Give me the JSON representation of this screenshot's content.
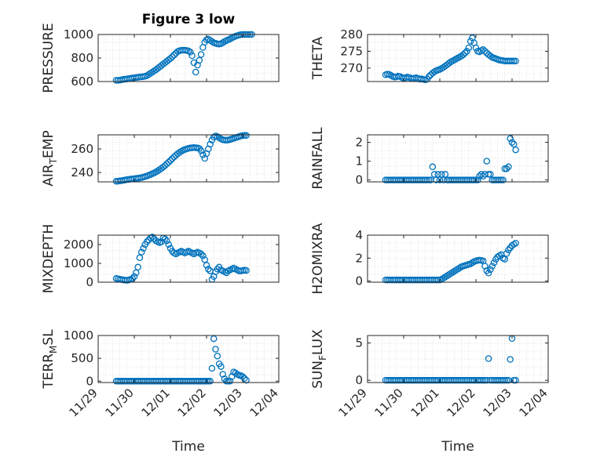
{
  "figure": {
    "title": "Figure 3 low",
    "xlabel": "Time",
    "marker_color": "#0072BD",
    "grid": "minor, dotted"
  },
  "chart_data": [
    {
      "type": "scatter",
      "ylabel": "PRESSURE",
      "ylim": [
        600,
        1000
      ],
      "yticks": [
        600,
        800,
        1000
      ],
      "xticks": [
        "11/29",
        "11/30",
        "12/01",
        "12/02",
        "12/03",
        "12/04"
      ],
      "x": [
        29.5,
        29.55,
        29.6,
        29.65,
        29.7,
        29.75,
        29.8,
        29.85,
        29.9,
        29.95,
        30.0,
        30.05,
        30.1,
        30.15,
        30.2,
        30.25,
        30.3,
        30.35,
        30.4,
        30.45,
        30.5,
        30.55,
        30.6,
        30.65,
        30.7,
        30.75,
        30.8,
        30.85,
        30.9,
        30.95,
        31.0,
        31.05,
        31.1,
        31.15,
        31.2,
        31.25,
        31.3,
        31.35,
        31.4,
        31.45,
        31.5,
        31.55,
        31.6,
        31.65,
        31.7,
        31.75,
        31.8,
        31.85,
        31.9,
        31.95,
        32.0,
        32.05,
        32.1,
        32.15,
        32.2,
        32.25,
        32.3,
        32.35,
        32.4,
        32.45,
        32.5,
        32.55,
        32.6,
        32.65,
        32.7,
        32.75,
        32.8,
        32.85,
        32.9,
        32.95,
        33.0,
        33.05,
        33.1,
        33.15,
        33.2,
        33.25
      ],
      "y": [
        610,
        610,
        612,
        615,
        618,
        620,
        622,
        625,
        627,
        630,
        632,
        634,
        636,
        638,
        640,
        642,
        645,
        650,
        660,
        670,
        680,
        690,
        700,
        712,
        724,
        736,
        748,
        760,
        772,
        784,
        796,
        810,
        825,
        840,
        855,
        862,
        865,
        867,
        866,
        864,
        860,
        850,
        820,
        760,
        680,
        740,
        780,
        830,
        890,
        935,
        955,
        960,
        950,
        940,
        930,
        925,
        920,
        918,
        922,
        930,
        940,
        948,
        955,
        962,
        970,
        978,
        985,
        990,
        995,
        998,
        1000,
        1000,
        1000,
        1000,
        1000,
        1000
      ]
    },
    {
      "type": "scatter",
      "ylabel": "THETA",
      "ylim": [
        266,
        280
      ],
      "yticks": [
        270,
        275,
        280
      ],
      "xticks": [
        "11/29",
        "11/30",
        "12/01",
        "12/02",
        "12/03",
        "12/04"
      ],
      "x": [
        29.5,
        29.55,
        29.6,
        29.65,
        29.7,
        29.75,
        29.8,
        29.85,
        29.9,
        29.95,
        30.0,
        30.05,
        30.1,
        30.15,
        30.2,
        30.25,
        30.3,
        30.35,
        30.4,
        30.45,
        30.5,
        30.55,
        30.6,
        30.65,
        30.7,
        30.75,
        30.8,
        30.85,
        30.9,
        30.95,
        31.0,
        31.05,
        31.1,
        31.15,
        31.2,
        31.25,
        31.3,
        31.35,
        31.4,
        31.45,
        31.5,
        31.55,
        31.6,
        31.65,
        31.7,
        31.75,
        31.8,
        31.85,
        31.9,
        31.95,
        32.0,
        32.05,
        32.1,
        32.15,
        32.2,
        32.25,
        32.3,
        32.35,
        32.4,
        32.45,
        32.5,
        32.55,
        32.6,
        32.65,
        32.7,
        32.75,
        32.8,
        32.85,
        32.9,
        32.95,
        33.0,
        33.05,
        33.1
      ],
      "y": [
        268.0,
        268.2,
        268.1,
        267.8,
        267.5,
        267.3,
        267.4,
        267.6,
        267.5,
        267.2,
        267.0,
        267.1,
        267.3,
        267.2,
        267.0,
        266.9,
        267.0,
        267.1,
        266.9,
        266.7,
        266.8,
        266.6,
        266.5,
        266.7,
        267.5,
        268.0,
        268.5,
        268.9,
        269.2,
        269.4,
        269.6,
        269.9,
        270.2,
        270.6,
        271.0,
        271.4,
        271.8,
        272.1,
        272.4,
        272.7,
        273.0,
        273.3,
        273.6,
        274.0,
        274.5,
        275.0,
        276.0,
        278.0,
        279.0,
        277.5,
        276.0,
        275.0,
        274.8,
        275.2,
        275.5,
        275.0,
        274.5,
        274.0,
        273.6,
        273.2,
        273.0,
        272.8,
        272.6,
        272.4,
        272.3,
        272.2,
        272.1,
        272.1,
        272.1,
        272.1,
        272.1,
        272.1,
        272.1
      ]
    },
    {
      "type": "scatter",
      "ylabel": "AIR_TEMP",
      "ylim": [
        232,
        272
      ],
      "yticks": [
        240,
        260
      ],
      "xticks": [
        "11/29",
        "11/30",
        "12/01",
        "12/02",
        "12/03",
        "12/04"
      ],
      "x": [
        29.5,
        29.55,
        29.6,
        29.65,
        29.7,
        29.75,
        29.8,
        29.85,
        29.9,
        29.95,
        30.0,
        30.05,
        30.1,
        30.15,
        30.2,
        30.25,
        30.3,
        30.35,
        30.4,
        30.45,
        30.5,
        30.55,
        30.6,
        30.65,
        30.7,
        30.75,
        30.8,
        30.85,
        30.9,
        30.95,
        31.0,
        31.05,
        31.1,
        31.15,
        31.2,
        31.25,
        31.3,
        31.35,
        31.4,
        31.45,
        31.5,
        31.55,
        31.6,
        31.65,
        31.7,
        31.75,
        31.8,
        31.85,
        31.9,
        31.95,
        32.0,
        32.05,
        32.1,
        32.15,
        32.2,
        32.25,
        32.3,
        32.35,
        32.4,
        32.45,
        32.5,
        32.55,
        32.6,
        32.65,
        32.7,
        32.75,
        32.8,
        32.85,
        32.9,
        32.95,
        33.0,
        33.05,
        33.1
      ],
      "y": [
        232.5,
        232.6,
        232.8,
        233.0,
        233.3,
        233.6,
        233.9,
        234.1,
        234.3,
        234.5,
        234.7,
        234.9,
        235.1,
        235.3,
        235.6,
        236.0,
        236.5,
        237.0,
        237.6,
        238.2,
        238.9,
        239.6,
        240.4,
        241.3,
        242.3,
        243.4,
        244.6,
        245.9,
        247.3,
        248.7,
        250.2,
        251.7,
        253.2,
        254.6,
        255.9,
        257.0,
        258.0,
        258.8,
        259.5,
        260.0,
        260.5,
        260.8,
        261.0,
        261.1,
        261.0,
        260.8,
        260.3,
        258.5,
        255.0,
        252.0,
        256.0,
        260.0,
        264.0,
        267.5,
        270.0,
        271.0,
        270.5,
        269.5,
        268.5,
        267.8,
        267.5,
        267.4,
        267.6,
        268.0,
        268.5,
        269.0,
        269.5,
        270.0,
        270.5,
        271.0,
        271.3,
        271.5,
        271.5
      ]
    },
    {
      "type": "scatter",
      "ylabel": "RAINFALL",
      "ylim": [
        -0.1,
        2.4
      ],
      "yticks": [
        0,
        1,
        2
      ],
      "xticks": [
        "11/29",
        "11/30",
        "12/01",
        "12/02",
        "12/03",
        "12/04"
      ],
      "x": [
        29.5,
        29.55,
        29.6,
        29.65,
        29.7,
        29.75,
        29.8,
        29.85,
        29.9,
        29.95,
        30.0,
        30.05,
        30.1,
        30.15,
        30.2,
        30.25,
        30.3,
        30.35,
        30.4,
        30.45,
        30.5,
        30.55,
        30.6,
        30.65,
        30.7,
        30.75,
        30.8,
        30.85,
        30.9,
        30.95,
        31.0,
        31.05,
        31.1,
        31.15,
        31.2,
        31.25,
        31.3,
        31.35,
        31.4,
        31.45,
        31.5,
        31.55,
        31.6,
        31.65,
        31.7,
        31.75,
        31.8,
        31.85,
        31.9,
        31.95,
        32.0,
        32.05,
        32.1,
        32.15,
        32.2,
        32.25,
        32.3,
        32.35,
        32.4,
        32.45,
        32.5,
        32.55,
        32.6,
        32.65,
        32.7,
        32.75,
        32.8,
        32.85,
        32.9,
        32.95,
        33.0,
        33.05,
        33.1
      ],
      "y": [
        0,
        0,
        0,
        0,
        0,
        0,
        0,
        0,
        0,
        0,
        0,
        0,
        0,
        0,
        0,
        0,
        0,
        0,
        0,
        0,
        0,
        0,
        0,
        0,
        0,
        0,
        0.7,
        0.3,
        0.0,
        0.3,
        0.0,
        0.3,
        0.0,
        0.3,
        0,
        0,
        0,
        0,
        0,
        0,
        0,
        0,
        0,
        0,
        0,
        0,
        0,
        0,
        0,
        0,
        0,
        0,
        0.2,
        0.3,
        0.2,
        0.3,
        1.0,
        0.3,
        0.3,
        0,
        0,
        0,
        0,
        0,
        0,
        0,
        0.6,
        0.6,
        0.7,
        2.2,
        2.0,
        1.9,
        1.6
      ]
    },
    {
      "type": "scatter",
      "ylabel": "MIXDEPTH",
      "ylim": [
        0,
        2500
      ],
      "yticks": [
        0,
        1000,
        2000
      ],
      "xticks": [
        "11/29",
        "11/30",
        "12/01",
        "12/02",
        "12/03",
        "12/04"
      ],
      "x": [
        29.5,
        29.55,
        29.6,
        29.65,
        29.7,
        29.75,
        29.8,
        29.85,
        29.9,
        29.95,
        30.0,
        30.05,
        30.1,
        30.15,
        30.2,
        30.25,
        30.3,
        30.35,
        30.4,
        30.45,
        30.5,
        30.55,
        30.6,
        30.65,
        30.7,
        30.75,
        30.8,
        30.85,
        30.9,
        30.95,
        31.0,
        31.05,
        31.1,
        31.15,
        31.2,
        31.25,
        31.3,
        31.35,
        31.4,
        31.45,
        31.5,
        31.55,
        31.6,
        31.65,
        31.7,
        31.75,
        31.8,
        31.85,
        31.9,
        31.95,
        32.0,
        32.05,
        32.1,
        32.15,
        32.2,
        32.25,
        32.3,
        32.35,
        32.4,
        32.45,
        32.5,
        32.55,
        32.6,
        32.65,
        32.7,
        32.75,
        32.8,
        32.85,
        32.9,
        32.95,
        33.0,
        33.05,
        33.1
      ],
      "y": [
        200,
        180,
        160,
        140,
        120,
        110,
        100,
        120,
        150,
        200,
        300,
        500,
        800,
        1300,
        1600,
        1800,
        2000,
        2150,
        2250,
        2350,
        2400,
        2300,
        2200,
        2150,
        2100,
        2150,
        2350,
        2300,
        2200,
        2000,
        1800,
        1650,
        1550,
        1500,
        1550,
        1600,
        1650,
        1600,
        1550,
        1600,
        1650,
        1600,
        1550,
        1500,
        1550,
        1600,
        1550,
        1500,
        1400,
        1200,
        900,
        700,
        600,
        150,
        300,
        550,
        700,
        800,
        650,
        600,
        550,
        500,
        600,
        650,
        700,
        750,
        700,
        650,
        600,
        600,
        620,
        640,
        620
      ]
    },
    {
      "type": "scatter",
      "ylabel": "H2OMIXRA",
      "ylim": [
        -0.1,
        4
      ],
      "yticks": [
        0,
        2,
        4
      ],
      "xticks": [
        "11/29",
        "11/30",
        "12/01",
        "12/02",
        "12/03",
        "12/04"
      ],
      "x": [
        29.5,
        29.55,
        29.6,
        29.65,
        29.7,
        29.75,
        29.8,
        29.85,
        29.9,
        29.95,
        30.0,
        30.05,
        30.1,
        30.15,
        30.2,
        30.25,
        30.3,
        30.35,
        30.4,
        30.45,
        30.5,
        30.55,
        30.6,
        30.65,
        30.7,
        30.75,
        30.8,
        30.85,
        30.9,
        30.95,
        31.0,
        31.05,
        31.1,
        31.15,
        31.2,
        31.25,
        31.3,
        31.35,
        31.4,
        31.45,
        31.5,
        31.55,
        31.6,
        31.65,
        31.7,
        31.75,
        31.8,
        31.85,
        31.9,
        31.95,
        32.0,
        32.05,
        32.1,
        32.15,
        32.2,
        32.25,
        32.3,
        32.35,
        32.4,
        32.45,
        32.5,
        32.55,
        32.6,
        32.65,
        32.7,
        32.75,
        32.8,
        32.85,
        32.9,
        32.95,
        33.0,
        33.05,
        33.1
      ],
      "y": [
        0.1,
        0.1,
        0.1,
        0.1,
        0.1,
        0.1,
        0.1,
        0.1,
        0.1,
        0.1,
        0.1,
        0.1,
        0.1,
        0.1,
        0.1,
        0.1,
        0.1,
        0.1,
        0.1,
        0.1,
        0.1,
        0.1,
        0.1,
        0.1,
        0.1,
        0.1,
        0.1,
        0.1,
        0.1,
        0.1,
        0.1,
        0.15,
        0.25,
        0.35,
        0.45,
        0.55,
        0.65,
        0.75,
        0.85,
        0.95,
        1.05,
        1.15,
        1.25,
        1.3,
        1.35,
        1.4,
        1.45,
        1.5,
        1.6,
        1.7,
        1.75,
        1.8,
        1.82,
        1.8,
        1.75,
        1.3,
        0.9,
        0.7,
        1.0,
        1.3,
        1.6,
        1.9,
        2.1,
        2.2,
        2.3,
        2.0,
        1.9,
        2.4,
        2.7,
        2.9,
        3.1,
        3.2,
        3.3
      ]
    },
    {
      "type": "scatter",
      "ylabel": "TERR_MSL",
      "ylim": [
        -30,
        1000
      ],
      "yticks": [
        0,
        500,
        1000
      ],
      "xticks": [
        "11/29",
        "11/30",
        "12/01",
        "12/02",
        "12/03",
        "12/04"
      ],
      "x": [
        29.5,
        29.55,
        29.6,
        29.65,
        29.7,
        29.75,
        29.8,
        29.85,
        29.9,
        29.95,
        30.0,
        30.05,
        30.1,
        30.15,
        30.2,
        30.25,
        30.3,
        30.35,
        30.4,
        30.45,
        30.5,
        30.55,
        30.6,
        30.65,
        30.7,
        30.75,
        30.8,
        30.85,
        30.9,
        30.95,
        31.0,
        31.05,
        31.1,
        31.15,
        31.2,
        31.25,
        31.3,
        31.35,
        31.4,
        31.45,
        31.5,
        31.55,
        31.6,
        31.65,
        31.7,
        31.75,
        31.8,
        31.85,
        31.9,
        31.95,
        32.0,
        32.05,
        32.1,
        32.15,
        32.2,
        32.25,
        32.3,
        32.35,
        32.4,
        32.45,
        32.5,
        32.55,
        32.6,
        32.65,
        32.7,
        32.75,
        32.8,
        32.85,
        32.9,
        32.95,
        33.0,
        33.05,
        33.1
      ],
      "y": [
        0,
        0,
        0,
        0,
        0,
        0,
        0,
        0,
        0,
        0,
        0,
        0,
        0,
        0,
        0,
        0,
        0,
        0,
        0,
        0,
        0,
        0,
        0,
        0,
        0,
        0,
        0,
        0,
        0,
        0,
        0,
        0,
        0,
        0,
        0,
        0,
        0,
        0,
        0,
        0,
        0,
        0,
        0,
        0,
        0,
        0,
        0,
        0,
        0,
        0,
        0,
        0,
        0,
        280,
        930,
        700,
        550,
        380,
        320,
        150,
        50,
        0,
        0,
        0,
        100,
        200,
        180,
        150,
        130,
        120,
        100,
        60,
        20
      ]
    },
    {
      "type": "scatter",
      "ylabel": "SUN_FLUX",
      "ylim": [
        -0.3,
        6
      ],
      "yticks": [
        0,
        5
      ],
      "xticks": [
        "11/29",
        "11/30",
        "12/01",
        "12/02",
        "12/03",
        "12/04"
      ],
      "x": [
        29.5,
        29.55,
        29.6,
        29.65,
        29.7,
        29.75,
        29.8,
        29.85,
        29.9,
        29.95,
        30.0,
        30.05,
        30.1,
        30.15,
        30.2,
        30.25,
        30.3,
        30.35,
        30.4,
        30.45,
        30.5,
        30.55,
        30.6,
        30.65,
        30.7,
        30.75,
        30.8,
        30.85,
        30.9,
        30.95,
        31.0,
        31.05,
        31.1,
        31.15,
        31.2,
        31.25,
        31.3,
        31.35,
        31.4,
        31.45,
        31.5,
        31.55,
        31.6,
        31.65,
        31.7,
        31.75,
        31.8,
        31.85,
        31.9,
        31.95,
        32.0,
        32.05,
        32.1,
        32.15,
        32.2,
        32.25,
        32.3,
        32.35,
        32.4,
        32.45,
        32.5,
        32.55,
        32.6,
        32.65,
        32.7,
        32.75,
        32.8,
        32.85,
        32.9,
        32.95,
        33.0,
        33.05,
        33.1
      ],
      "y": [
        0,
        0,
        0,
        0,
        0,
        0,
        0,
        0,
        0,
        0,
        0,
        0,
        0,
        0,
        0,
        0,
        0,
        0,
        0,
        0,
        0,
        0,
        0,
        0,
        0,
        0,
        0,
        0,
        0,
        0,
        0,
        0,
        0,
        0,
        0,
        0,
        0,
        0,
        0,
        0,
        0,
        0,
        0,
        0,
        0,
        0,
        0,
        0,
        0,
        0,
        0,
        0,
        0,
        0,
        0,
        0,
        0,
        2.9,
        0,
        0,
        0,
        0,
        0,
        0,
        0,
        0,
        0,
        0,
        0,
        2.8,
        5.6,
        0,
        0
      ]
    }
  ]
}
